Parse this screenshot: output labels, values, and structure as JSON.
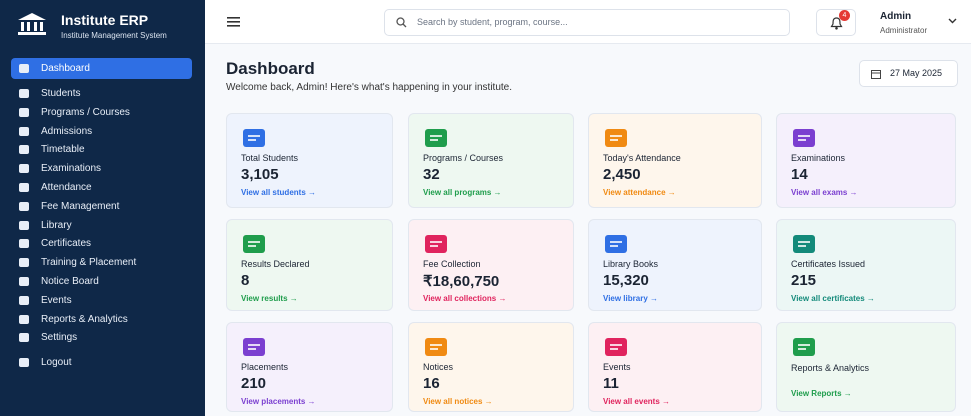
{
  "sidebar": {
    "title": "Institute ERP",
    "subtitle": "Institute Management System",
    "nav": [
      "Dashboard",
      "Students",
      "Programs / Courses",
      "Admissions",
      "Timetable",
      "Examinations",
      "Attendance",
      "Fee Management",
      "Library",
      "Certificates",
      "Training & Placement",
      "Notice Board",
      "Events",
      "Reports & Analytics",
      "Settings"
    ],
    "logout": "Logout"
  },
  "header": {
    "search_placeholder": "Search by student, program, course...",
    "notifications": "4",
    "user_name": "Admin",
    "user_role": "Administrator"
  },
  "page": {
    "title": "Dashboard",
    "subtitle": "Welcome back, Admin! Here's what's happening in your institute.",
    "date": "27 May 2025"
  },
  "cards": [
    {
      "label": "Total Students",
      "value": "3,105",
      "link": "View all students →"
    },
    {
      "label": "Programs / Courses",
      "value": "32",
      "link": "View all programs →"
    },
    {
      "label": "Today's Attendance",
      "value": "2,450",
      "link": "View attendance →"
    },
    {
      "label": "Examinations",
      "value": "14",
      "link": "View all exams →"
    },
    {
      "label": "Results Declared",
      "value": "8",
      "link": "View results →"
    },
    {
      "label": "Fee Collection",
      "value": "₹18,60,750",
      "link": "View all collections →"
    },
    {
      "label": "Library Books",
      "value": "15,320",
      "link": "View library →"
    },
    {
      "label": "Certificates Issued",
      "value": "215",
      "link": "View all certificates →"
    },
    {
      "label": "Placements",
      "value": "210",
      "link": "View placements →"
    },
    {
      "label": "Notices",
      "value": "16",
      "link": "View all notices →"
    },
    {
      "label": "Events",
      "value": "11",
      "link": "View all events →"
    },
    {
      "label": "Reports & Analytics",
      "link": "View Reports →"
    }
  ]
}
